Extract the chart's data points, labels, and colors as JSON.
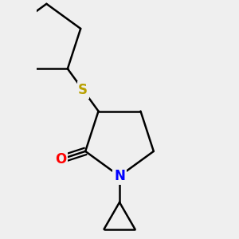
{
  "bg_color": "#efefef",
  "line_color": "#000000",
  "S_color": "#b8a000",
  "N_color": "#0000ff",
  "O_color": "#ff0000",
  "line_width": 1.8,
  "figsize": [
    3.0,
    3.0
  ],
  "dpi": 100,
  "xlim": [
    -1.2,
    1.2
  ],
  "ylim": [
    -1.6,
    1.8
  ]
}
